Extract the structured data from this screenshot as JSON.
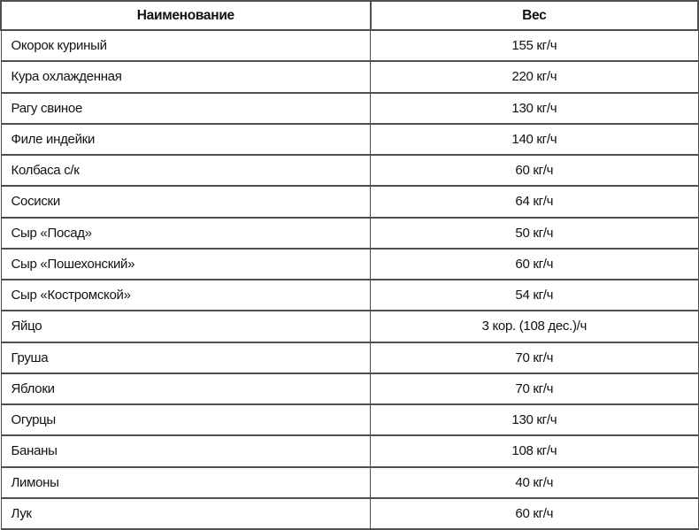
{
  "table": {
    "columns": [
      {
        "label": "Наименование"
      },
      {
        "label": "Вес"
      }
    ],
    "rows": [
      {
        "name": "Окорок куриный",
        "weight": "155 кг/ч"
      },
      {
        "name": "Кура охлажденная",
        "weight": "220 кг/ч"
      },
      {
        "name": "Рагу свиное",
        "weight": "130 кг/ч"
      },
      {
        "name": "Филе индейки",
        "weight": "140 кг/ч"
      },
      {
        "name": "Колбаса с/к",
        "weight": "60 кг/ч"
      },
      {
        "name": "Сосиски",
        "weight": "64 кг/ч"
      },
      {
        "name": "Сыр «Посад»",
        "weight": "50 кг/ч"
      },
      {
        "name": "Сыр «Пошехонский»",
        "weight": "60 кг/ч"
      },
      {
        "name": "Сыр «Костромской»",
        "weight": "54 кг/ч"
      },
      {
        "name": "Яйцо",
        "weight": "3 кор. (108 дес.)/ч"
      },
      {
        "name": "Груша",
        "weight": "70 кг/ч"
      },
      {
        "name": "Яблоки",
        "weight": "70 кг/ч"
      },
      {
        "name": "Огурцы",
        "weight": "130 кг/ч"
      },
      {
        "name": "Бананы",
        "weight": "108 кг/ч"
      },
      {
        "name": "Лимоны",
        "weight": "40 кг/ч"
      },
      {
        "name": "Лук",
        "weight": "60 кг/ч"
      }
    ]
  },
  "colors": {
    "border": "#4f4f4f",
    "text": "#121212",
    "background": "#ffffff"
  }
}
